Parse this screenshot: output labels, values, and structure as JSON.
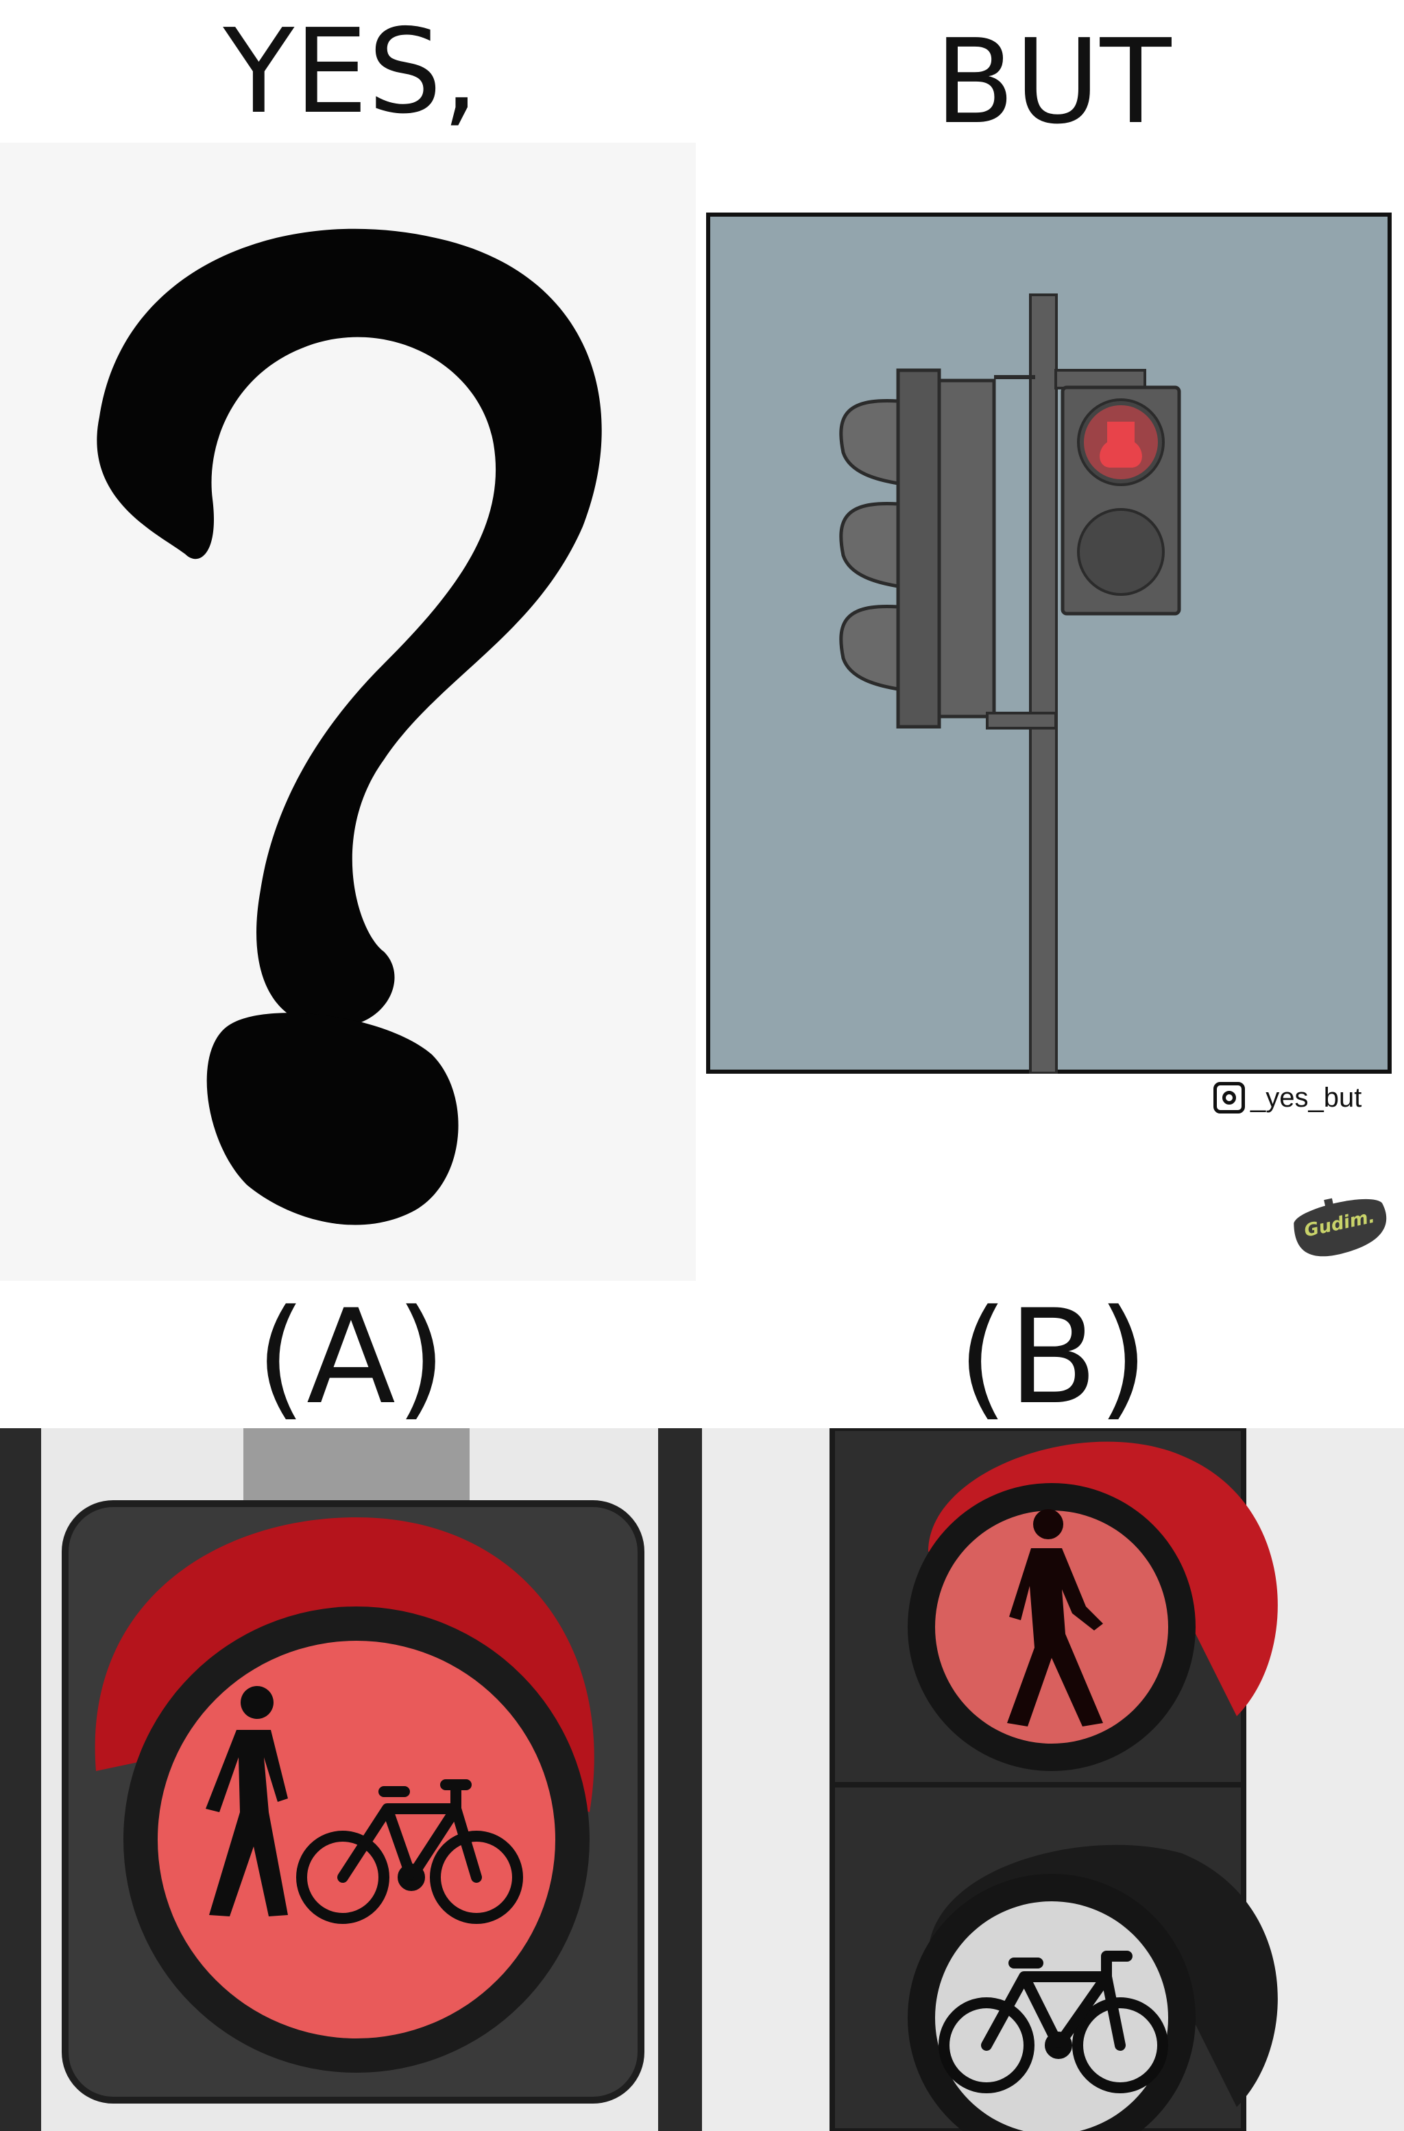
{
  "headings": {
    "yes": "YES,",
    "but": "BUT"
  },
  "option_labels": {
    "a": "(A)",
    "b": "(B)"
  },
  "watermark": {
    "handle": "_yes_but",
    "icon": "instagram-icon"
  },
  "signature": "Gudim.",
  "colors": {
    "sky": "#93a5ad",
    "pole": "#5d5d5d",
    "red_light": "#e8434a",
    "signal_red": "#e24444",
    "dark_housing": "#2e2e2e"
  },
  "icons": {
    "question_mark": "question-mark-icon",
    "traffic_light": "traffic-light-icon",
    "pedestrian": "pedestrian-icon",
    "bicycle": "bicycle-icon"
  }
}
